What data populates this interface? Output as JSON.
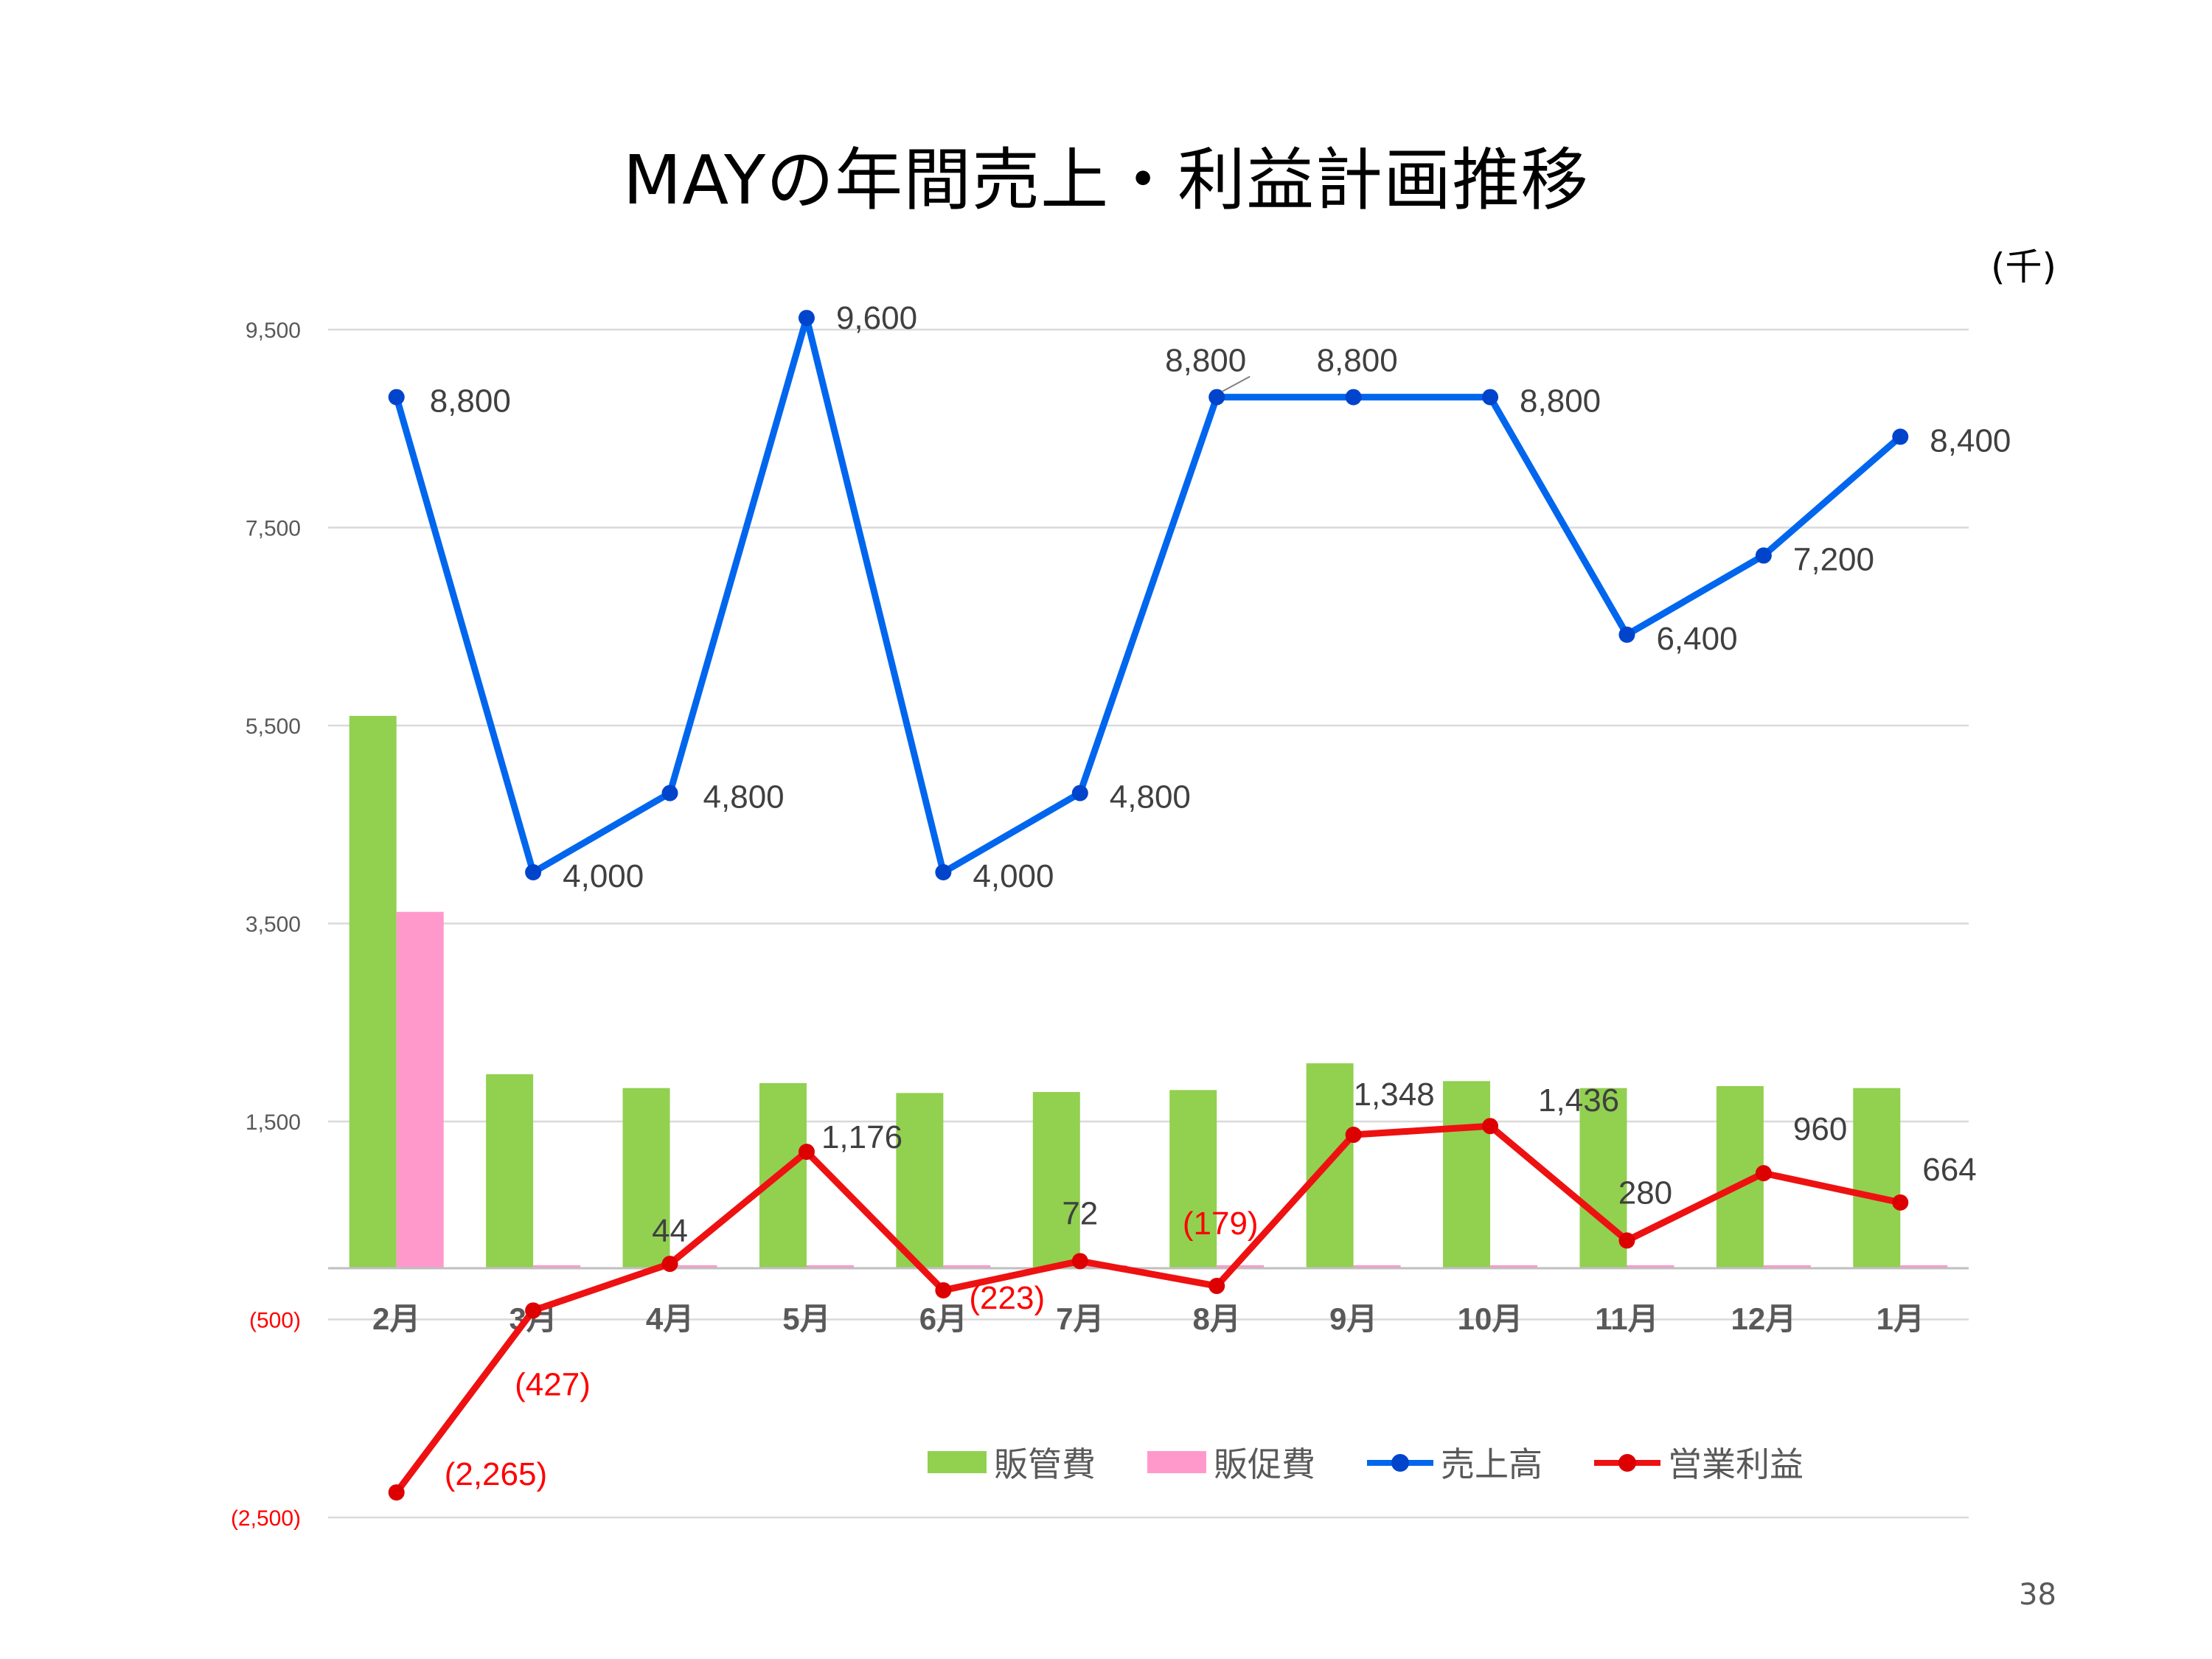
{
  "title": "MAYの年間売上・利益計画推移",
  "unit_label": "(千)",
  "page_number": "38",
  "colors": {
    "hankanhi": "#92d050",
    "hansokuhi": "#ff99cc",
    "uriage": "#0066ee",
    "eigyo_rieki": "#ee1111",
    "negative_label": "#ff0000",
    "axis_text": "#595959",
    "grid": "#d9d9d9"
  },
  "chart_data": {
    "type": "bar",
    "title": "MAYの年間売上・利益計画推移",
    "categories": [
      "2月",
      "3月",
      "4月",
      "5月",
      "6月",
      "7月",
      "8月",
      "9月",
      "10月",
      "11月",
      "12月",
      "1月"
    ],
    "y_ticks": [
      {
        "value": 9500,
        "label": "9,500"
      },
      {
        "value": 7500,
        "label": "7,500"
      },
      {
        "value": 5500,
        "label": "5,500"
      },
      {
        "value": 3500,
        "label": "3,500"
      },
      {
        "value": 1500,
        "label": "1,500"
      },
      {
        "value": -500,
        "label": "(500)"
      },
      {
        "value": -2500,
        "label": "(2,500)"
      }
    ],
    "ylim": [
      -2500,
      9500
    ],
    "grid": true,
    "legend_position": "bottom-right",
    "series": [
      {
        "name": "販管費",
        "type": "bar",
        "values": [
          5580,
          1960,
          1820,
          1870,
          1770,
          1780,
          1800,
          2070,
          1890,
          1820,
          1840,
          1820
        ]
      },
      {
        "name": "販促費",
        "type": "bar",
        "values": [
          3600,
          30,
          30,
          30,
          30,
          30,
          30,
          30,
          30,
          30,
          30,
          30
        ]
      },
      {
        "name": "売上高",
        "type": "line",
        "values": [
          8800,
          4000,
          4800,
          9600,
          4000,
          4800,
          8800,
          8800,
          8800,
          6400,
          7200,
          8400
        ],
        "labels": [
          "8,800",
          "4,000",
          "4,800",
          "9,600",
          "4,000",
          "4,800",
          "8,800",
          "8,800",
          "8,800",
          "6,400",
          "7,200",
          "8,400"
        ]
      },
      {
        "name": "営業利益",
        "type": "line",
        "values": [
          -2265,
          -427,
          44,
          1176,
          -223,
          72,
          -179,
          1348,
          1436,
          280,
          960,
          664
        ],
        "labels": [
          "(2,265)",
          "(427)",
          "44",
          "1,176",
          "(223)",
          "72",
          "(179)",
          "1,348",
          "1,436",
          "280",
          "960",
          "664"
        ]
      }
    ]
  }
}
